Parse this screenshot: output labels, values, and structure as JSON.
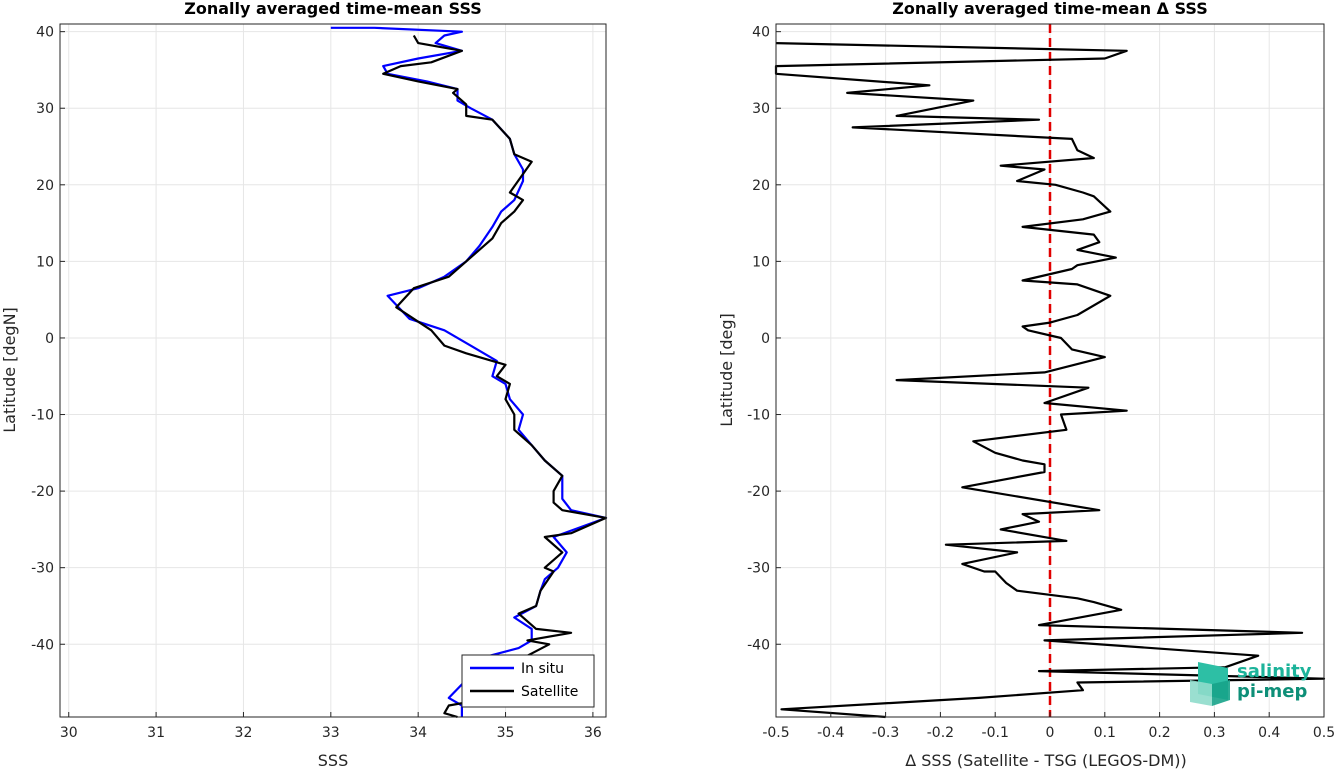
{
  "chart_data": [
    {
      "type": "line",
      "title": "Zonally averaged time-mean SSS",
      "xlabel": "SSS",
      "ylabel": "Latitude [degN]",
      "xlim": [
        29.9,
        36.15
      ],
      "ylim": [
        -49.5,
        41
      ],
      "xticks": [
        30,
        31,
        32,
        33,
        34,
        35,
        36
      ],
      "yticks": [
        40,
        30,
        20,
        10,
        0,
        -10,
        -20,
        -30,
        -40
      ],
      "grid": true,
      "legend_position": "bottom-right",
      "series": [
        {
          "name": "In situ",
          "color": "#0000ff",
          "points": [
            [
              34.5,
              -49.5
            ],
            [
              34.5,
              -48
            ],
            [
              34.35,
              -47
            ],
            [
              34.82,
              -41.5
            ],
            [
              35.15,
              -40.5
            ],
            [
              35.3,
              -39.5
            ],
            [
              35.3,
              -38
            ],
            [
              35.1,
              -36.5
            ],
            [
              35.35,
              -35
            ],
            [
              35.4,
              -33
            ],
            [
              35.45,
              -31.5
            ],
            [
              35.6,
              -30
            ],
            [
              35.7,
              -28
            ],
            [
              35.55,
              -26
            ],
            [
              36.15,
              -23.5
            ],
            [
              35.75,
              -22.5
            ],
            [
              35.65,
              -21
            ],
            [
              35.65,
              -18
            ],
            [
              35.45,
              -16
            ],
            [
              35.3,
              -14
            ],
            [
              35.15,
              -12
            ],
            [
              35.2,
              -10
            ],
            [
              35.05,
              -8
            ],
            [
              35.0,
              -6
            ],
            [
              34.85,
              -5
            ],
            [
              34.9,
              -3
            ],
            [
              34.6,
              -1
            ],
            [
              34.3,
              1
            ],
            [
              33.9,
              2.5
            ],
            [
              33.65,
              5.5
            ],
            [
              34.0,
              6.5
            ],
            [
              34.3,
              8
            ],
            [
              34.55,
              10
            ],
            [
              34.7,
              12
            ],
            [
              34.85,
              14.5
            ],
            [
              34.95,
              16.5
            ],
            [
              35.1,
              18
            ],
            [
              35.2,
              20.5
            ],
            [
              35.2,
              22
            ],
            [
              35.1,
              24
            ],
            [
              35.05,
              26
            ],
            [
              34.85,
              28.5
            ],
            [
              34.6,
              30
            ],
            [
              34.45,
              31
            ],
            [
              34.45,
              32.5
            ],
            [
              34.1,
              33.5
            ],
            [
              33.65,
              34.5
            ],
            [
              33.6,
              35.5
            ],
            [
              34.0,
              36.5
            ],
            [
              34.5,
              37.5
            ],
            [
              34.2,
              38.5
            ],
            [
              34.3,
              39.5
            ],
            [
              34.5,
              40
            ],
            [
              33.5,
              40.5
            ],
            [
              33.0,
              40.5
            ]
          ]
        },
        {
          "name": "Satellite",
          "color": "#000000",
          "points": [
            [
              34.45,
              -49.5
            ],
            [
              34.3,
              -49
            ],
            [
              34.35,
              -48
            ],
            [
              34.6,
              -47.5
            ],
            [
              34.9,
              -47
            ],
            [
              35.0,
              -43.5
            ],
            [
              35.25,
              -41.5
            ],
            [
              35.5,
              -40
            ],
            [
              35.25,
              -39.5
            ],
            [
              35.75,
              -38.5
            ],
            [
              35.35,
              -38
            ],
            [
              35.25,
              -37
            ],
            [
              35.15,
              -36
            ],
            [
              35.35,
              -35
            ],
            [
              35.4,
              -33
            ],
            [
              35.55,
              -30.5
            ],
            [
              35.45,
              -30
            ],
            [
              35.65,
              -28
            ],
            [
              35.45,
              -26
            ],
            [
              35.75,
              -25.5
            ],
            [
              36.15,
              -23.5
            ],
            [
              35.65,
              -22.5
            ],
            [
              35.55,
              -21.5
            ],
            [
              35.55,
              -20
            ],
            [
              35.65,
              -18
            ],
            [
              35.45,
              -16
            ],
            [
              35.3,
              -14
            ],
            [
              35.1,
              -12
            ],
            [
              35.1,
              -10
            ],
            [
              35.0,
              -8
            ],
            [
              35.05,
              -6
            ],
            [
              34.9,
              -5
            ],
            [
              35.0,
              -3.5
            ],
            [
              34.55,
              -2
            ],
            [
              34.3,
              -1
            ],
            [
              34.15,
              1
            ],
            [
              33.75,
              4
            ],
            [
              33.95,
              6.5
            ],
            [
              34.35,
              8
            ],
            [
              34.65,
              11
            ],
            [
              34.85,
              13
            ],
            [
              34.95,
              15
            ],
            [
              35.1,
              16.5
            ],
            [
              35.2,
              18
            ],
            [
              35.05,
              19
            ],
            [
              35.3,
              23
            ],
            [
              35.1,
              24
            ],
            [
              35.05,
              26
            ],
            [
              34.85,
              28.5
            ],
            [
              34.55,
              29
            ],
            [
              34.55,
              30.5
            ],
            [
              34.4,
              32
            ],
            [
              34.45,
              32.5
            ],
            [
              34.0,
              33.5
            ],
            [
              33.6,
              34.5
            ],
            [
              33.8,
              35.5
            ],
            [
              34.15,
              36
            ],
            [
              34.5,
              37.5
            ],
            [
              34.0,
              38.5
            ],
            [
              33.95,
              39.5
            ]
          ]
        }
      ]
    },
    {
      "type": "line",
      "title": "Zonally averaged time-mean Δ SSS",
      "xlabel": "Δ SSS (Satellite - TSG (LEGOS-DM))",
      "ylabel": "Latitude [deg]",
      "xlim": [
        -0.5,
        0.5
      ],
      "ylim": [
        -49.5,
        41
      ],
      "xticks": [
        -0.5,
        -0.4,
        -0.3,
        -0.2,
        -0.1,
        0,
        0.1,
        0.2,
        0.3,
        0.4,
        0.5
      ],
      "xtick_labels": [
        "-0.5",
        "-0.4",
        "-0.3",
        "-0.2",
        "-0.1",
        "0",
        "0.1",
        "0.2",
        "0.3",
        "0.4",
        "0.5"
      ],
      "yticks": [
        40,
        30,
        20,
        10,
        0,
        -10,
        -20,
        -30,
        -40
      ],
      "grid": true,
      "reference_line": {
        "x": 0,
        "color": "#e00000",
        "style": "dashed"
      },
      "series": [
        {
          "color": "#000000",
          "points": [
            [
              -0.5,
              38.5
            ],
            [
              0.14,
              37.5
            ],
            [
              0.1,
              36.5
            ],
            [
              -0.5,
              35.5
            ],
            [
              -0.5,
              34.5
            ],
            [
              -0.22,
              33
            ],
            [
              -0.37,
              32
            ],
            [
              -0.14,
              31
            ],
            [
              -0.28,
              29
            ],
            [
              -0.02,
              28.5
            ],
            [
              -0.36,
              27.5
            ],
            [
              0.04,
              26
            ],
            [
              0.05,
              24.5
            ],
            [
              0.08,
              23.5
            ],
            [
              -0.09,
              22.5
            ],
            [
              -0.01,
              22
            ],
            [
              -0.06,
              20.5
            ],
            [
              0.01,
              20
            ],
            [
              0.06,
              19
            ],
            [
              0.08,
              18.5
            ],
            [
              0.11,
              16.5
            ],
            [
              0.06,
              15.5
            ],
            [
              -0.05,
              14.5
            ],
            [
              0.08,
              13.5
            ],
            [
              0.09,
              12.5
            ],
            [
              0.05,
              11.5
            ],
            [
              0.12,
              10.5
            ],
            [
              0.05,
              9.5
            ],
            [
              0.04,
              9
            ],
            [
              -0.05,
              7.5
            ],
            [
              0.05,
              7
            ],
            [
              0.11,
              5.5
            ],
            [
              0.05,
              3
            ],
            [
              0.0,
              2
            ],
            [
              -0.05,
              1.5
            ],
            [
              -0.04,
              1
            ],
            [
              0.02,
              0
            ],
            [
              0.04,
              -1.5
            ],
            [
              0.1,
              -2.5
            ],
            [
              -0.01,
              -4.5
            ],
            [
              -0.28,
              -5.5
            ],
            [
              0.07,
              -6.5
            ],
            [
              -0.01,
              -8.5
            ],
            [
              0.14,
              -9.5
            ],
            [
              0.02,
              -10
            ],
            [
              0.03,
              -12
            ],
            [
              -0.14,
              -13.5
            ],
            [
              -0.1,
              -15
            ],
            [
              -0.05,
              -16
            ],
            [
              -0.01,
              -16.5
            ],
            [
              -0.01,
              -17.5
            ],
            [
              -0.16,
              -19.5
            ],
            [
              0.09,
              -22.5
            ],
            [
              -0.05,
              -23
            ],
            [
              -0.02,
              -24
            ],
            [
              -0.09,
              -25
            ],
            [
              0.03,
              -26.5
            ],
            [
              -0.19,
              -27
            ],
            [
              -0.06,
              -28
            ],
            [
              -0.16,
              -29.5
            ],
            [
              -0.12,
              -30.5
            ],
            [
              -0.1,
              -30.5
            ],
            [
              -0.08,
              -32
            ],
            [
              -0.06,
              -33
            ],
            [
              0.05,
              -34
            ],
            [
              0.08,
              -34.5
            ],
            [
              0.13,
              -35.5
            ],
            [
              -0.02,
              -37.5
            ],
            [
              0.46,
              -38.5
            ],
            [
              -0.01,
              -39.5
            ],
            [
              0.38,
              -41.5
            ],
            [
              0.32,
              -43
            ],
            [
              -0.02,
              -43.5
            ],
            [
              0.5,
              -44.5
            ],
            [
              0.05,
              -45
            ],
            [
              0.06,
              -46
            ],
            [
              -0.13,
              -47
            ],
            [
              -0.49,
              -48.5
            ],
            [
              -0.3,
              -49.5
            ]
          ]
        }
      ]
    }
  ],
  "legend": {
    "in_situ_label": "In situ",
    "satellite_label": "Satellite"
  },
  "logo": {
    "line1": "salinity",
    "line2": "pi-mep"
  }
}
